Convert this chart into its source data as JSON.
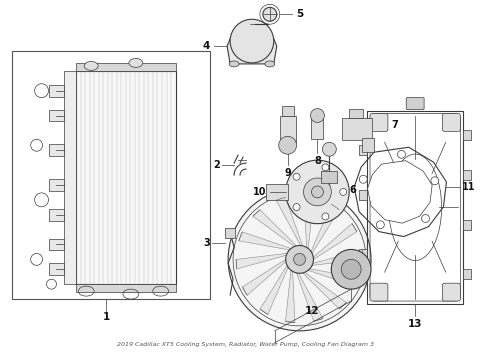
{
  "title": "2019 Cadillac XT5 Cooling System, Radiator, Water Pump, Cooling Fan Diagram 3",
  "background_color": "#ffffff",
  "line_color": "#3a3a3a",
  "fig_w": 4.9,
  "fig_h": 3.6,
  "dpi": 100
}
